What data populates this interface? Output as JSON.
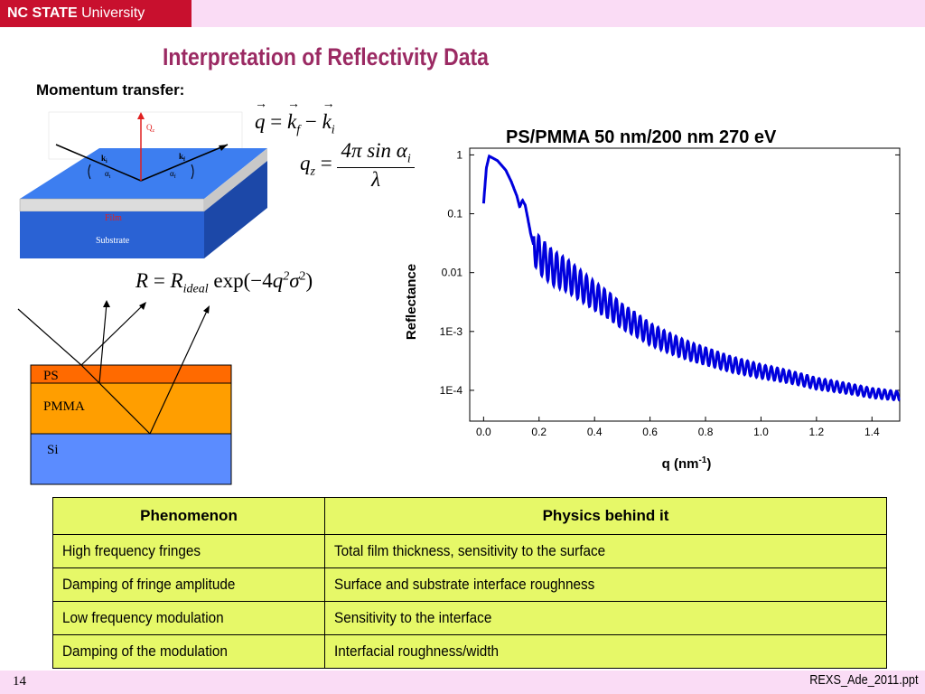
{
  "header": {
    "logo_bold": "NC STATE",
    "logo_rest": " University"
  },
  "title": "Interpretation of Reflectivity Data",
  "subhead": "Momentum transfer:",
  "diagram_top": {
    "qz_label": "Q",
    "qz_sub": "z",
    "ki_label": "k",
    "ki_sub": "i",
    "kf_label": "k",
    "kf_sub": "f",
    "ai_label": "α",
    "ai_sub": "i",
    "af_label": "α",
    "af_sub": "f",
    "film_label": "Film",
    "substrate_label": "Substrate"
  },
  "diagram_bottom": {
    "ps_label": "PS",
    "pmma_label": "PMMA",
    "si_label": "Si"
  },
  "equations": {
    "q_lhs": "q",
    "q_eq": " = ",
    "q_kf": "k",
    "q_kf_sub": "f",
    "q_minus": " − ",
    "q_ki": "k",
    "q_ki_sub": "i",
    "qz_lhs": "q",
    "qz_sub": "z",
    "qz_eq": " = ",
    "qz_num": "4π sin α",
    "qz_num_sub": "i",
    "qz_den": "λ",
    "r_lhs": "R",
    "r_eq": " = ",
    "r_rideal": "R",
    "r_rideal_sub": "ideal",
    "r_exp": " exp(−4",
    "r_q": "q",
    "r_q_sup": "2",
    "r_sigma": "σ",
    "r_sigma_sup": "2",
    "r_close": ")"
  },
  "chart_data": {
    "type": "line",
    "title": "PS/PMMA 50 nm/200 nm  270 eV",
    "xlabel": "q (nm",
    "xlabel_sup": "-1",
    "xlabel_close": ")",
    "ylabel": "Reflectance",
    "xlim": [
      -0.05,
      1.5
    ],
    "ylim": [
      3e-05,
      1.3
    ],
    "yscale": "log",
    "xticks": [
      0.0,
      0.2,
      0.4,
      0.6,
      0.8,
      1.0,
      1.2,
      1.4
    ],
    "xtick_labels": [
      "0.0",
      "0.2",
      "0.4",
      "0.6",
      "0.8",
      "1.0",
      "1.2",
      "1.4"
    ],
    "yticks": [
      1,
      0.1,
      0.01,
      0.001,
      0.0001
    ],
    "ytick_labels": [
      "1",
      "0.1",
      "0.01",
      "1E-3",
      "1E-4"
    ],
    "grid": false,
    "color": "#0000dd",
    "x": [
      0.0,
      0.01,
      0.02,
      0.03,
      0.05,
      0.08,
      0.1,
      0.12,
      0.13,
      0.14,
      0.15,
      0.16,
      0.17,
      0.18,
      0.19,
      0.2,
      0.25,
      0.3,
      0.35,
      0.4,
      0.45,
      0.5,
      0.55,
      0.6,
      0.65,
      0.7,
      0.75,
      0.8,
      0.85,
      0.9,
      0.95,
      1.0,
      1.05,
      1.1,
      1.15,
      1.2,
      1.25,
      1.3,
      1.35,
      1.4,
      1.45,
      1.5
    ],
    "values": [
      0.15,
      0.6,
      0.95,
      0.9,
      0.8,
      0.55,
      0.35,
      0.2,
      0.13,
      0.17,
      0.14,
      0.08,
      0.045,
      0.03,
      0.025,
      0.02,
      0.012,
      0.009,
      0.006,
      0.004,
      0.0028,
      0.0018,
      0.0013,
      0.0009,
      0.0007,
      0.00055,
      0.00045,
      0.00038,
      0.00032,
      0.00027,
      0.00024,
      0.00021,
      0.00019,
      0.00017,
      0.00015,
      0.00013,
      0.00012,
      0.00011,
      0.0001,
      9e-05,
      8.5e-05,
      8e-05
    ]
  },
  "table": {
    "headers": [
      "Phenomenon",
      "Physics behind it"
    ],
    "rows": [
      [
        "High frequency fringes",
        "Total film thickness, sensitivity to the surface"
      ],
      [
        "Damping of fringe amplitude",
        "Surface and substrate interface roughness"
      ],
      [
        "Low frequency modulation",
        "Sensitivity to the interface"
      ],
      [
        "Damping of the modulation",
        "Interfacial roughness/width"
      ]
    ]
  },
  "footer": {
    "page": "14",
    "file": "REXS_Ade_2011.ppt"
  }
}
